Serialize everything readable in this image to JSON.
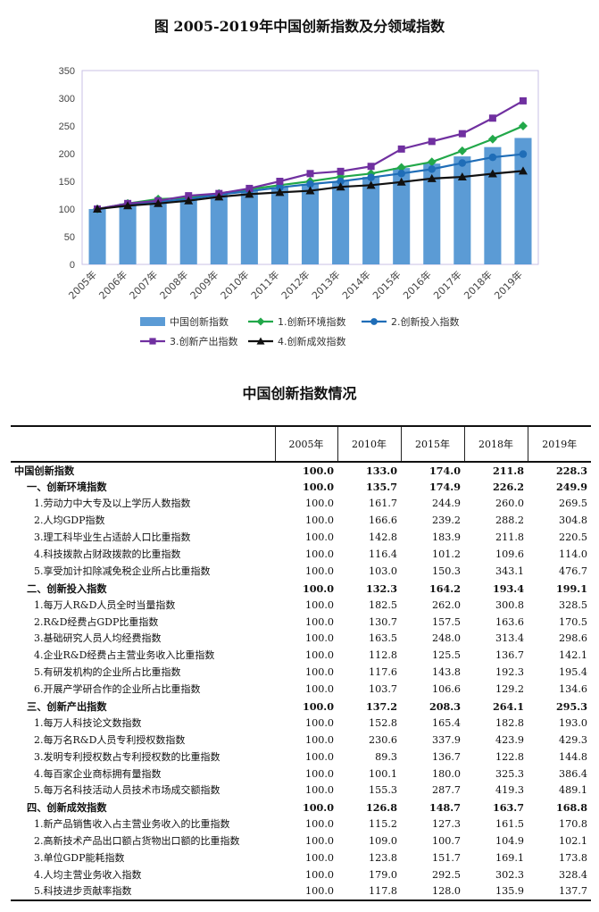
{
  "chart_title": "图 2005-2019年中国创新指数及分领域指数",
  "chart_data": {
    "type": "bar",
    "categories": [
      "2005年",
      "2006年",
      "2007年",
      "2008年",
      "2009年",
      "2010年",
      "2011年",
      "2012年",
      "2013年",
      "2014年",
      "2015年",
      "2016年",
      "2017年",
      "2018年",
      "2019年"
    ],
    "ylim": [
      0,
      350
    ],
    "yticks": [
      0,
      50,
      100,
      150,
      200,
      250,
      300,
      350
    ],
    "grid": false,
    "legend_position": "bottom",
    "series": [
      {
        "name": "中国创新指数",
        "kind": "bar",
        "color": "#5b9bd5",
        "marker": "none",
        "values": [
          100.0,
          110,
          117,
          120,
          128,
          133.0,
          139,
          145,
          150,
          158,
          174.0,
          182,
          195,
          211.8,
          228.3
        ]
      },
      {
        "name": "1.创新环境指数",
        "kind": "line",
        "color": "#22a84a",
        "marker": "diamond",
        "values": [
          100.0,
          110,
          118,
          120,
          128,
          135.7,
          143,
          150,
          158,
          164,
          174.9,
          185,
          205,
          226.2,
          249.9
        ]
      },
      {
        "name": "2.创新投入指数",
        "kind": "line",
        "color": "#1f6db7",
        "marker": "circle",
        "values": [
          100.0,
          108,
          113,
          118,
          126,
          132.3,
          139,
          145,
          150,
          157,
          164.2,
          172,
          183,
          193.4,
          199.1
        ]
      },
      {
        "name": "3.创新产出指数",
        "kind": "line",
        "color": "#7030a0",
        "marker": "square",
        "values": [
          100.0,
          110,
          115,
          124,
          128,
          137.2,
          150,
          164,
          168,
          177,
          208.3,
          222,
          236,
          264.1,
          295.3
        ]
      },
      {
        "name": "4.创新成效指数",
        "kind": "line",
        "color": "#111111",
        "marker": "triangle",
        "values": [
          100.0,
          106,
          110,
          115,
          122,
          126.8,
          130,
          133,
          140,
          143,
          148.7,
          155,
          158,
          163.7,
          168.8
        ]
      }
    ]
  },
  "table": {
    "title": "中国创新指数情况",
    "headers": [
      "",
      "2005年",
      "2010年",
      "2015年",
      "2018年",
      "2019年"
    ],
    "rows": [
      {
        "level": 1,
        "bold": true,
        "name": "中国创新指数",
        "values": [
          "100.0",
          "133.0",
          "174.0",
          "211.8",
          "228.3"
        ]
      },
      {
        "level": 2,
        "bold": true,
        "name": "一、创新环境指数",
        "values": [
          "100.0",
          "135.7",
          "174.9",
          "226.2",
          "249.9"
        ]
      },
      {
        "level": 3,
        "bold": false,
        "name": "1.劳动力中大专及以上学历人数指数",
        "values": [
          "100.0",
          "161.7",
          "244.9",
          "260.0",
          "269.5"
        ]
      },
      {
        "level": 3,
        "bold": false,
        "name": "2.人均GDP指数",
        "values": [
          "100.0",
          "166.6",
          "239.2",
          "288.2",
          "304.8"
        ]
      },
      {
        "level": 3,
        "bold": false,
        "name": "3.理工科毕业生占适龄人口比重指数",
        "values": [
          "100.0",
          "142.8",
          "183.9",
          "211.8",
          "220.5"
        ]
      },
      {
        "level": 3,
        "bold": false,
        "name": "4.科技拨款占财政拨款的比重指数",
        "values": [
          "100.0",
          "116.4",
          "101.2",
          "109.6",
          "114.0"
        ]
      },
      {
        "level": 3,
        "bold": false,
        "name": "5.享受加计扣除减免税企业所占比重指数",
        "values": [
          "100.0",
          "103.0",
          "150.3",
          "343.1",
          "476.7"
        ]
      },
      {
        "level": 2,
        "bold": true,
        "name": "二、创新投入指数",
        "values": [
          "100.0",
          "132.3",
          "164.2",
          "193.4",
          "199.1"
        ]
      },
      {
        "level": 3,
        "bold": false,
        "name": "1.每万人R&D人员全时当量指数",
        "values": [
          "100.0",
          "182.5",
          "262.0",
          "300.8",
          "328.5"
        ]
      },
      {
        "level": 3,
        "bold": false,
        "name": "2.R&D经费占GDP比重指数",
        "values": [
          "100.0",
          "130.7",
          "157.5",
          "163.6",
          "170.5"
        ]
      },
      {
        "level": 3,
        "bold": false,
        "name": "3.基础研究人员人均经费指数",
        "values": [
          "100.0",
          "163.5",
          "248.0",
          "313.4",
          "298.6"
        ]
      },
      {
        "level": 3,
        "bold": false,
        "name": "4.企业R&D经费占主营业务收入比重指数",
        "values": [
          "100.0",
          "112.8",
          "125.5",
          "136.7",
          "142.1"
        ]
      },
      {
        "level": 3,
        "bold": false,
        "name": "5.有研发机构的企业所占比重指数",
        "values": [
          "100.0",
          "117.6",
          "143.8",
          "192.3",
          "195.4"
        ]
      },
      {
        "level": 3,
        "bold": false,
        "name": "6.开展产学研合作的企业所占比重指数",
        "values": [
          "100.0",
          "103.7",
          "106.6",
          "129.2",
          "134.6"
        ]
      },
      {
        "level": 2,
        "bold": true,
        "name": "三、创新产出指数",
        "values": [
          "100.0",
          "137.2",
          "208.3",
          "264.1",
          "295.3"
        ]
      },
      {
        "level": 3,
        "bold": false,
        "name": "1.每万人科技论文数指数",
        "values": [
          "100.0",
          "152.8",
          "165.4",
          "182.8",
          "193.0"
        ]
      },
      {
        "level": 3,
        "bold": false,
        "name": "2.每万名R&D人员专利授权数指数",
        "values": [
          "100.0",
          "230.6",
          "337.9",
          "423.9",
          "429.3"
        ]
      },
      {
        "level": 3,
        "bold": false,
        "name": "3.发明专利授权数占专利授权数的比重指数",
        "values": [
          "100.0",
          "89.3",
          "136.7",
          "122.8",
          "144.8"
        ]
      },
      {
        "level": 3,
        "bold": false,
        "name": "4.每百家企业商标拥有量指数",
        "values": [
          "100.0",
          "100.1",
          "180.0",
          "325.3",
          "386.4"
        ]
      },
      {
        "level": 3,
        "bold": false,
        "name": "5.每万名科技活动人员技术市场成交额指数",
        "values": [
          "100.0",
          "155.3",
          "287.7",
          "419.3",
          "489.1"
        ]
      },
      {
        "level": 2,
        "bold": true,
        "name": "四、创新成效指数",
        "values": [
          "100.0",
          "126.8",
          "148.7",
          "163.7",
          "168.8"
        ]
      },
      {
        "level": 3,
        "bold": false,
        "name": "1.新产品销售收入占主营业务收入的比重指数",
        "values": [
          "100.0",
          "115.2",
          "127.3",
          "161.5",
          "170.8"
        ]
      },
      {
        "level": 3,
        "bold": false,
        "name": "2.高新技术产品出口额占货物出口额的比重指数",
        "values": [
          "100.0",
          "109.0",
          "100.7",
          "104.9",
          "102.1"
        ]
      },
      {
        "level": 3,
        "bold": false,
        "name": "3.单位GDP能耗指数",
        "values": [
          "100.0",
          "123.8",
          "151.7",
          "169.1",
          "173.8"
        ]
      },
      {
        "level": 3,
        "bold": false,
        "name": "4.人均主营业务收入指数",
        "values": [
          "100.0",
          "179.0",
          "292.5",
          "302.3",
          "328.4"
        ]
      },
      {
        "level": 3,
        "bold": false,
        "name": "5.科技进步贡献率指数",
        "values": [
          "100.0",
          "117.8",
          "128.0",
          "135.9",
          "137.7"
        ]
      }
    ]
  }
}
